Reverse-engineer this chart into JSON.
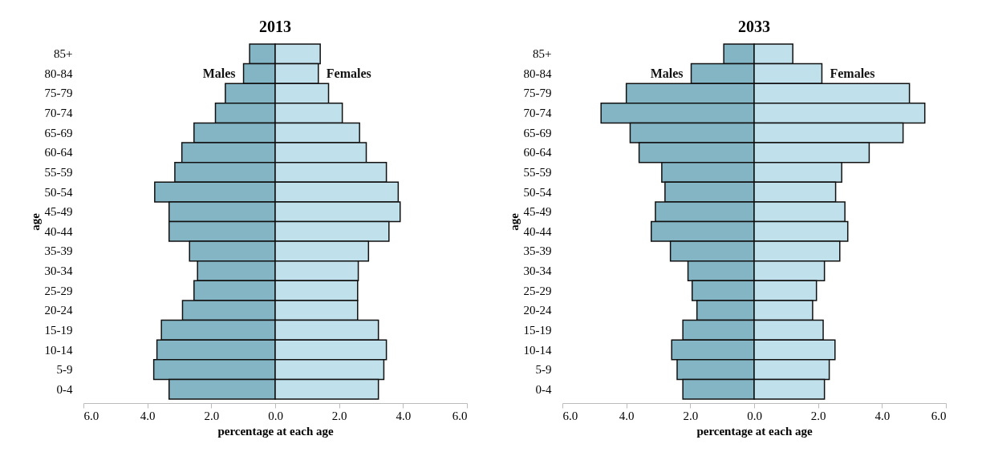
{
  "chart_data": [
    {
      "type": "bar",
      "orientation": "horizontal",
      "title": "2013",
      "xlabel": "percentage at each age",
      "ylabel": "age",
      "categories": [
        "85+",
        "80-84",
        "75-79",
        "70-74",
        "65-69",
        "60-64",
        "55-59",
        "50-54",
        "45-49",
        "40-44",
        "35-39",
        "30-34",
        "25-29",
        "20-24",
        "15-19",
        "10-14",
        "5-9",
        "0-4"
      ],
      "series": [
        {
          "name": "Males",
          "color": "#84b5c4",
          "values": [
            -0.8,
            -0.99,
            -1.56,
            -1.87,
            -2.54,
            -2.92,
            -3.14,
            -3.77,
            -3.32,
            -3.32,
            -2.68,
            -2.43,
            -2.54,
            -2.9,
            -3.56,
            -3.7,
            -3.8,
            -3.32
          ]
        },
        {
          "name": "Females",
          "color": "#c0e1eb",
          "values": [
            1.41,
            1.35,
            1.67,
            2.1,
            2.64,
            2.85,
            3.48,
            3.85,
            3.91,
            3.56,
            2.92,
            2.6,
            2.58,
            2.58,
            3.23,
            3.48,
            3.4,
            3.23
          ]
        }
      ],
      "xlim": [
        -6,
        6
      ],
      "xticks": [
        {
          "value": -6,
          "label": "6.0"
        },
        {
          "value": -4,
          "label": "4.0"
        },
        {
          "value": -2,
          "label": "2.0"
        },
        {
          "value": 0,
          "label": "0.0"
        },
        {
          "value": 2,
          "label": "2.0"
        },
        {
          "value": 4,
          "label": "4.0"
        },
        {
          "value": 6,
          "label": "6.0"
        }
      ],
      "stacked": true,
      "grid": false
    },
    {
      "type": "bar",
      "orientation": "horizontal",
      "title": "2033",
      "xlabel": "percentage at each age",
      "ylabel": "age",
      "categories": [
        "85+",
        "80-84",
        "75-79",
        "70-74",
        "65-69",
        "60-64",
        "55-59",
        "50-54",
        "45-49",
        "40-44",
        "35-39",
        "30-34",
        "25-29",
        "20-24",
        "15-19",
        "10-14",
        "5-9",
        "0-4"
      ],
      "series": [
        {
          "name": "Males",
          "color": "#84b5c4",
          "values": [
            -0.95,
            -1.97,
            -4.0,
            -4.79,
            -3.88,
            -3.6,
            -2.89,
            -2.79,
            -3.09,
            -3.22,
            -2.62,
            -2.07,
            -1.94,
            -1.79,
            -2.23,
            -2.58,
            -2.41,
            -2.23
          ]
        },
        {
          "name": "Females",
          "color": "#c0e1eb",
          "values": [
            1.21,
            2.12,
            4.86,
            5.34,
            4.66,
            3.6,
            2.74,
            2.55,
            2.84,
            2.93,
            2.68,
            2.2,
            1.95,
            1.83,
            2.16,
            2.53,
            2.35,
            2.2
          ]
        }
      ],
      "xlim": [
        -6,
        6
      ],
      "xticks": [
        {
          "value": -6,
          "label": "6.0"
        },
        {
          "value": -4,
          "label": "4.0"
        },
        {
          "value": -2,
          "label": "2.0"
        },
        {
          "value": 0,
          "label": "0.0"
        },
        {
          "value": 2,
          "label": "2.0"
        },
        {
          "value": 4,
          "label": "4.0"
        },
        {
          "value": 6,
          "label": "6.0"
        }
      ],
      "stacked": true,
      "grid": false
    }
  ]
}
